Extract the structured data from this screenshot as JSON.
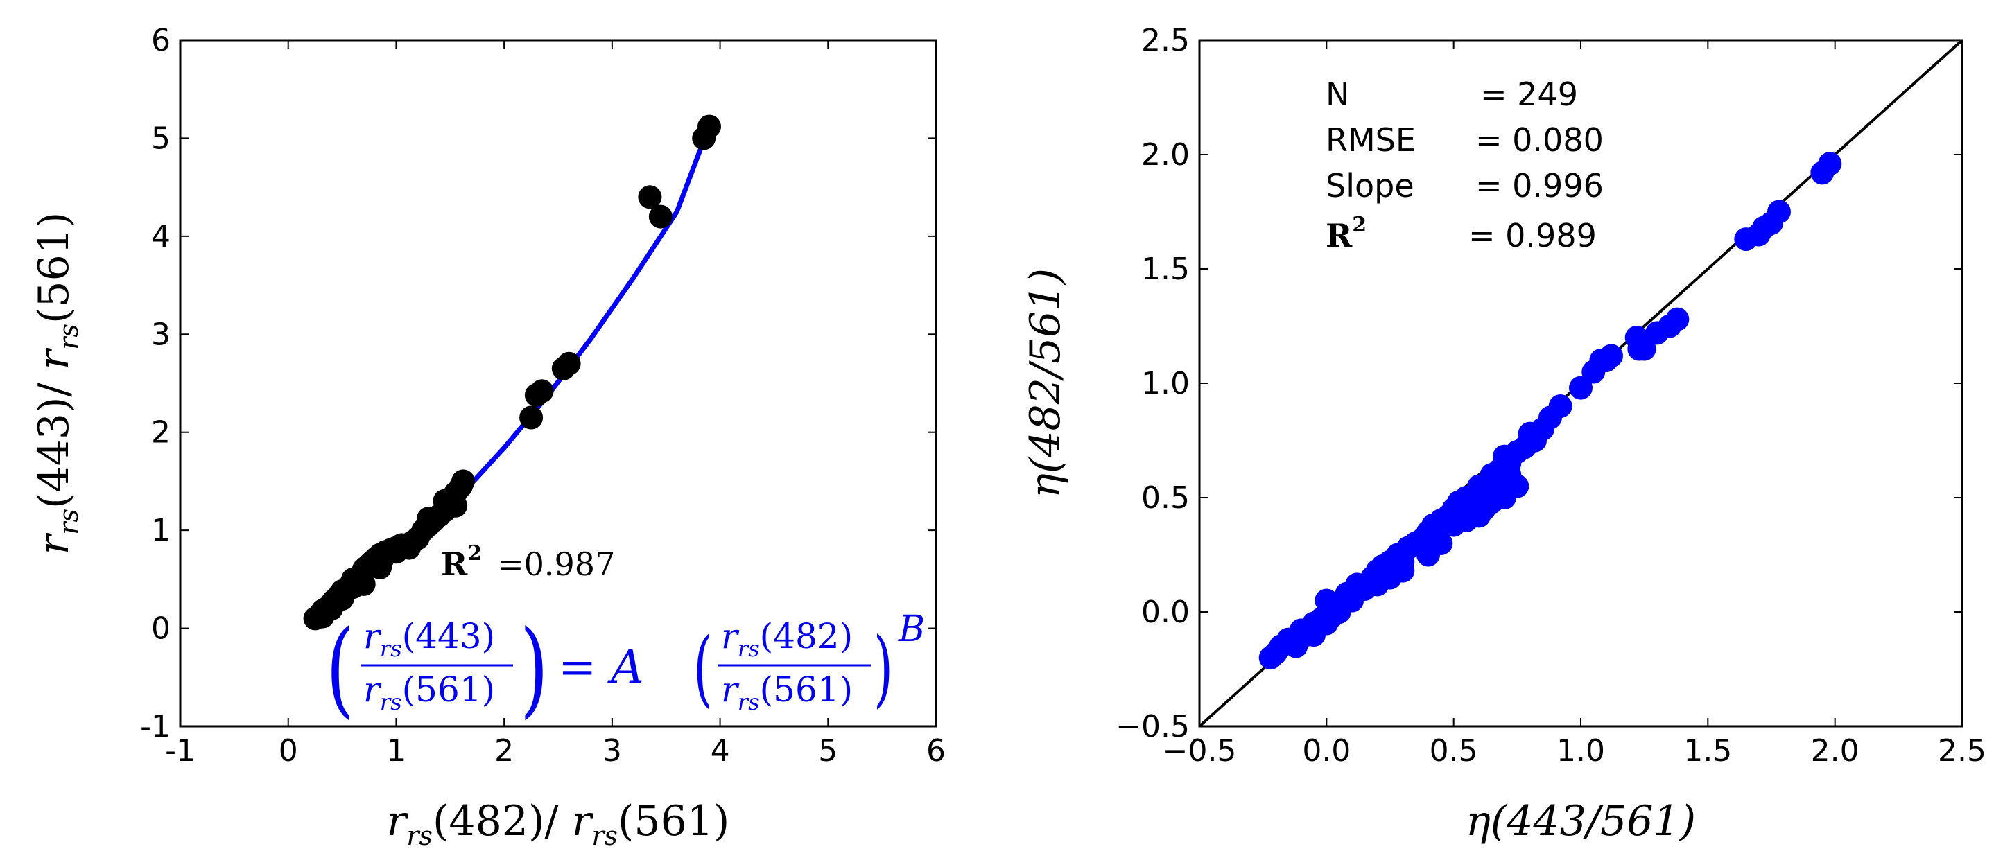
{
  "chart_data": [
    {
      "type": "scatter",
      "title": "",
      "xlabel": "r_rs(482)/ r_rs(561)",
      "ylabel": "r_rs(443)/ r_rs(561)",
      "xlabel_parts": {
        "r": "r",
        "sub": "rs",
        "num": "(482)/ ",
        "r2": "r",
        "sub2": "rs",
        "den": "(561)"
      },
      "ylabel_parts": {
        "r": "r",
        "sub": "rs",
        "num": "(443)/ ",
        "r2": "r",
        "sub2": "rs",
        "den": "(561)"
      },
      "xlim": [
        -1,
        6
      ],
      "ylim": [
        -1,
        6
      ],
      "xticks": [
        "-1",
        "0",
        "1",
        "2",
        "3",
        "4",
        "5",
        "6"
      ],
      "yticks": [
        "-1",
        "0",
        "1",
        "2",
        "3",
        "4",
        "5",
        "6"
      ],
      "marker_color": "#000000",
      "fit_color": "#0000ff",
      "annotation": {
        "label": "R",
        "sup": "2",
        "value": "=0.987"
      },
      "equation": {
        "lhs_num": "r_rs(443)",
        "lhs_den": "r_rs(561)",
        "equals": "= A",
        "rhs_num": "r_rs(482)",
        "rhs_den": "r_rs(561)",
        "exponent": "B",
        "r": "r",
        "sub": "rs",
        "n443": "(443)",
        "n482": "(482)",
        "n561": "(561)"
      },
      "fit_curve": {
        "x": [
          0.45,
          0.8,
          1.2,
          1.6,
          2.0,
          2.4,
          2.8,
          3.2,
          3.6,
          3.85
        ],
        "y": [
          0.27,
          0.56,
          0.93,
          1.36,
          1.84,
          2.37,
          2.95,
          3.58,
          4.25,
          4.98
        ]
      },
      "points": {
        "x": [
          0.25,
          0.28,
          0.3,
          0.32,
          0.35,
          0.38,
          0.4,
          0.42,
          0.45,
          0.48,
          0.5,
          0.55,
          0.58,
          0.6,
          0.65,
          0.68,
          0.7,
          0.72,
          0.75,
          0.78,
          0.8,
          0.82,
          0.85,
          0.88,
          0.9,
          0.95,
          1.0,
          1.05,
          1.1,
          1.15,
          1.2,
          1.25,
          1.3,
          1.35,
          1.4,
          1.45,
          1.5,
          1.55,
          1.6,
          1.62,
          1.45,
          1.55,
          0.32,
          0.5,
          0.7,
          2.25,
          2.3,
          2.35,
          2.55,
          2.6,
          3.35,
          3.45,
          3.85,
          3.9,
          1.0,
          1.12,
          0.6,
          0.85,
          1.3,
          0.4
        ],
        "y": [
          0.1,
          0.12,
          0.15,
          0.18,
          0.2,
          0.22,
          0.25,
          0.28,
          0.3,
          0.35,
          0.38,
          0.4,
          0.45,
          0.5,
          0.52,
          0.55,
          0.6,
          0.62,
          0.65,
          0.68,
          0.7,
          0.72,
          0.75,
          0.72,
          0.78,
          0.8,
          0.82,
          0.85,
          0.85,
          0.88,
          0.92,
          1.0,
          1.05,
          1.1,
          1.15,
          1.2,
          1.3,
          1.38,
          1.45,
          1.5,
          1.3,
          1.25,
          0.12,
          0.3,
          0.45,
          2.15,
          2.38,
          2.42,
          2.65,
          2.7,
          4.4,
          4.2,
          5.0,
          5.12,
          0.78,
          0.82,
          0.42,
          0.62,
          1.12,
          0.2
        ]
      }
    },
    {
      "type": "scatter",
      "title": "",
      "xlabel": "η(443/561)",
      "ylabel": "η(482/561)",
      "xlim": [
        -0.5,
        2.5
      ],
      "ylim": [
        -0.5,
        2.5
      ],
      "xticks": [
        "−0.5",
        "0.0",
        "0.5",
        "1.0",
        "1.5",
        "2.0",
        "2.5"
      ],
      "yticks": [
        "−0.5",
        "0.0",
        "0.5",
        "1.0",
        "1.5",
        "2.0",
        "2.5"
      ],
      "marker_color": "#0000ff",
      "line_color": "#000000",
      "stats": [
        {
          "label": "N",
          "value": "= 249"
        },
        {
          "label": "RMSE",
          "value": "= 0.080"
        },
        {
          "label": "Slope",
          "value": "= 0.996"
        },
        {
          "label": "R",
          "sup": "2",
          "value": "= 0.989"
        }
      ],
      "reference_line": {
        "x": [
          -0.5,
          2.5
        ],
        "y": [
          -0.5,
          2.5
        ]
      },
      "points": {
        "x": [
          -0.22,
          -0.2,
          -0.18,
          -0.15,
          -0.12,
          -0.1,
          -0.08,
          -0.05,
          -0.02,
          0.0,
          0.02,
          0.05,
          0.08,
          0.1,
          0.12,
          0.15,
          0.18,
          0.2,
          0.22,
          0.25,
          0.28,
          0.3,
          0.32,
          0.35,
          0.38,
          0.4,
          0.42,
          0.45,
          0.48,
          0.5,
          0.52,
          0.55,
          0.58,
          0.6,
          0.62,
          0.65,
          0.68,
          0.7,
          0.72,
          0.75,
          0.78,
          0.8,
          0.82,
          0.85,
          0.88,
          0.92,
          1.0,
          1.05,
          1.08,
          1.12,
          1.22,
          1.25,
          1.3,
          1.35,
          1.38,
          1.65,
          1.7,
          1.75,
          1.78,
          1.95,
          1.98,
          0.0,
          0.05,
          0.2,
          0.35,
          0.5,
          0.55,
          0.6,
          0.7,
          0.3,
          0.45,
          0.62,
          0.65,
          0.75,
          0.4,
          0.25,
          0.1,
          -0.05,
          0.58,
          0.68,
          0.72,
          1.1,
          1.23,
          1.72
        ],
        "y": [
          -0.2,
          -0.18,
          -0.15,
          -0.12,
          -0.15,
          -0.08,
          -0.1,
          -0.05,
          -0.03,
          0.05,
          -0.02,
          0.0,
          0.08,
          0.05,
          0.12,
          0.1,
          0.15,
          0.18,
          0.2,
          0.22,
          0.25,
          0.22,
          0.28,
          0.3,
          0.32,
          0.35,
          0.38,
          0.4,
          0.42,
          0.45,
          0.48,
          0.5,
          0.45,
          0.55,
          0.5,
          0.6,
          0.62,
          0.68,
          0.65,
          0.7,
          0.72,
          0.78,
          0.75,
          0.8,
          0.85,
          0.9,
          0.98,
          1.05,
          1.1,
          1.12,
          1.2,
          1.15,
          1.22,
          1.25,
          1.28,
          1.63,
          1.65,
          1.7,
          1.75,
          1.92,
          1.96,
          -0.05,
          0.02,
          0.12,
          0.3,
          0.38,
          0.4,
          0.42,
          0.5,
          0.18,
          0.3,
          0.45,
          0.48,
          0.55,
          0.25,
          0.15,
          0.05,
          -0.1,
          0.42,
          0.55,
          0.6,
          1.1,
          1.15,
          1.68
        ]
      }
    }
  ]
}
